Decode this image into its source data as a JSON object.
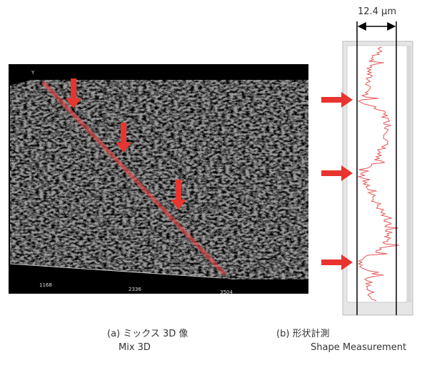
{
  "dimension_label": "12.4 µm",
  "panels": [
    {
      "caption": "(a) ミックス 3D 像",
      "caption_en": "Mix 3D",
      "axis_letter": "Y",
      "axis_labels": [
        "1168",
        "2336",
        "3504"
      ]
    },
    {
      "caption": "(b) 形状計測",
      "caption_en": "Shape Measurement"
    }
  ]
}
